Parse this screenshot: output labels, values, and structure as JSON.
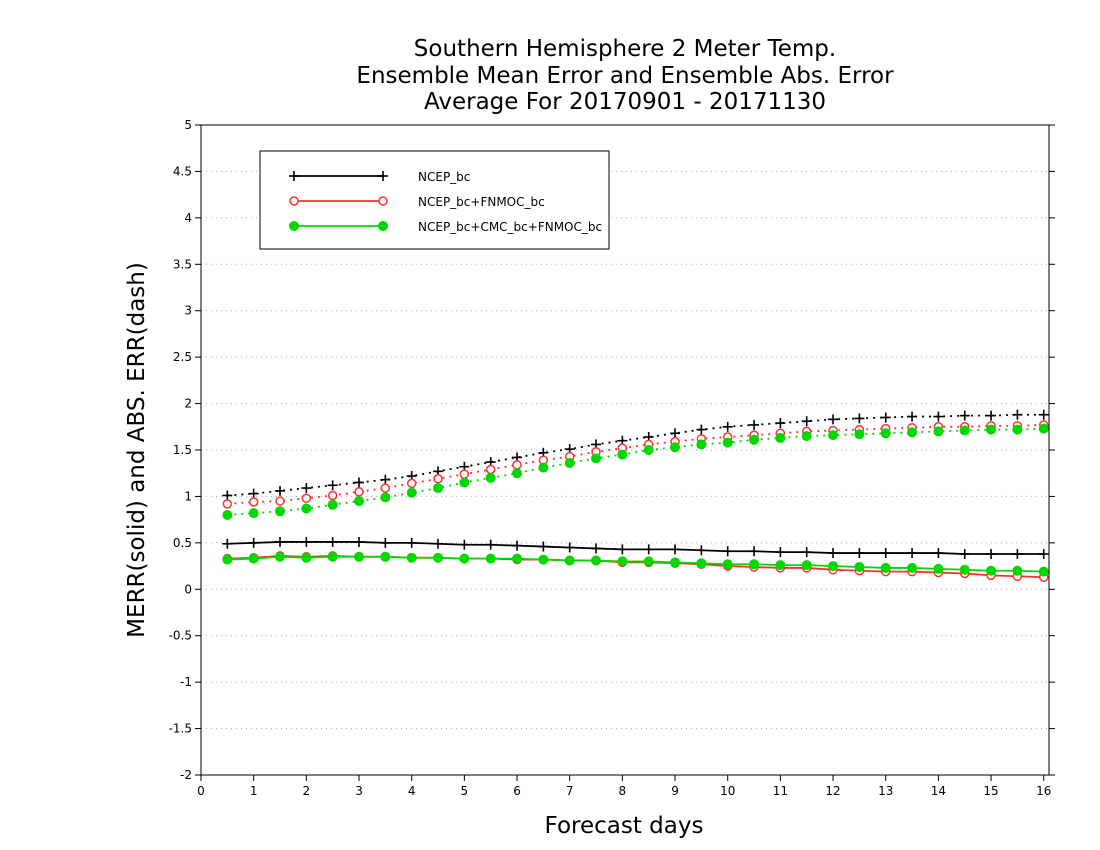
{
  "chart_data": {
    "type": "line",
    "title": [
      "Southern Hemisphere 2 Meter Temp.",
      "Ensemble Mean Error and Ensemble Abs. Error",
      "Average For 20170901 - 20171130"
    ],
    "xlabel": "Forecast days",
    "ylabel": "MERR(solid) and ABS. ERR(dash)",
    "xlim": [
      0,
      16.1
    ],
    "ylim": [
      -2,
      5
    ],
    "xticks": [
      "0",
      "1",
      "2",
      "3",
      "4",
      "5",
      "6",
      "7",
      "8",
      "9",
      "10",
      "11",
      "12",
      "13",
      "14",
      "15",
      "16"
    ],
    "yticks": [
      "-2",
      "-1.5",
      "-1",
      "-0.5",
      "0",
      "0.5",
      "1",
      "1.5",
      "2",
      "2.5",
      "3",
      "3.5",
      "4",
      "4.5",
      "5"
    ],
    "grid": "horizontal dotted",
    "legend_position": "top-left",
    "x": [
      0.5,
      1,
      1.5,
      2,
      2.5,
      3,
      3.5,
      4,
      4.5,
      5,
      5.5,
      6,
      6.5,
      7,
      7.5,
      8,
      8.5,
      9,
      9.5,
      10,
      10.5,
      11,
      11.5,
      12,
      12.5,
      13,
      13.5,
      14,
      14.5,
      15,
      15.5,
      16
    ],
    "series": [
      {
        "name": "NCEP_bc",
        "color": "#000000",
        "marker": "plus",
        "merr": [
          0.49,
          0.5,
          0.51,
          0.51,
          0.51,
          0.51,
          0.5,
          0.5,
          0.49,
          0.48,
          0.48,
          0.47,
          0.46,
          0.45,
          0.44,
          0.43,
          0.43,
          0.43,
          0.42,
          0.41,
          0.41,
          0.4,
          0.4,
          0.39,
          0.39,
          0.39,
          0.39,
          0.39,
          0.38,
          0.38,
          0.38,
          0.38
        ],
        "abs_err": [
          1.01,
          1.03,
          1.06,
          1.09,
          1.12,
          1.15,
          1.18,
          1.22,
          1.27,
          1.32,
          1.37,
          1.42,
          1.47,
          1.51,
          1.56,
          1.6,
          1.64,
          1.68,
          1.72,
          1.75,
          1.77,
          1.79,
          1.81,
          1.83,
          1.84,
          1.85,
          1.86,
          1.86,
          1.87,
          1.87,
          1.88,
          1.88
        ]
      },
      {
        "name": "NCEP_bc+FNMOC_bc",
        "color": "#ff3030",
        "marker": "open-circle",
        "merr": [
          0.33,
          0.34,
          0.36,
          0.35,
          0.36,
          0.35,
          0.35,
          0.34,
          0.34,
          0.33,
          0.33,
          0.32,
          0.32,
          0.31,
          0.31,
          0.29,
          0.29,
          0.28,
          0.27,
          0.25,
          0.24,
          0.23,
          0.23,
          0.21,
          0.2,
          0.19,
          0.19,
          0.18,
          0.17,
          0.15,
          0.14,
          0.13
        ],
        "abs_err": [
          0.92,
          0.94,
          0.95,
          0.98,
          1.01,
          1.05,
          1.09,
          1.14,
          1.19,
          1.24,
          1.29,
          1.34,
          1.39,
          1.43,
          1.48,
          1.52,
          1.56,
          1.59,
          1.62,
          1.64,
          1.66,
          1.68,
          1.7,
          1.71,
          1.72,
          1.73,
          1.74,
          1.75,
          1.75,
          1.76,
          1.76,
          1.77
        ]
      },
      {
        "name": "NCEP_bc+CMC_bc+FNMOC_bc",
        "color": "#00d800",
        "marker": "filled-circle",
        "merr": [
          0.32,
          0.33,
          0.35,
          0.34,
          0.35,
          0.35,
          0.35,
          0.34,
          0.34,
          0.33,
          0.33,
          0.33,
          0.32,
          0.31,
          0.31,
          0.3,
          0.3,
          0.29,
          0.28,
          0.27,
          0.27,
          0.26,
          0.26,
          0.25,
          0.24,
          0.23,
          0.23,
          0.22,
          0.21,
          0.2,
          0.2,
          0.19
        ],
        "abs_err": [
          0.8,
          0.82,
          0.84,
          0.87,
          0.91,
          0.95,
          0.99,
          1.04,
          1.09,
          1.15,
          1.2,
          1.25,
          1.31,
          1.36,
          1.41,
          1.45,
          1.5,
          1.53,
          1.56,
          1.58,
          1.61,
          1.63,
          1.65,
          1.66,
          1.67,
          1.68,
          1.69,
          1.7,
          1.71,
          1.72,
          1.72,
          1.73
        ]
      }
    ]
  }
}
